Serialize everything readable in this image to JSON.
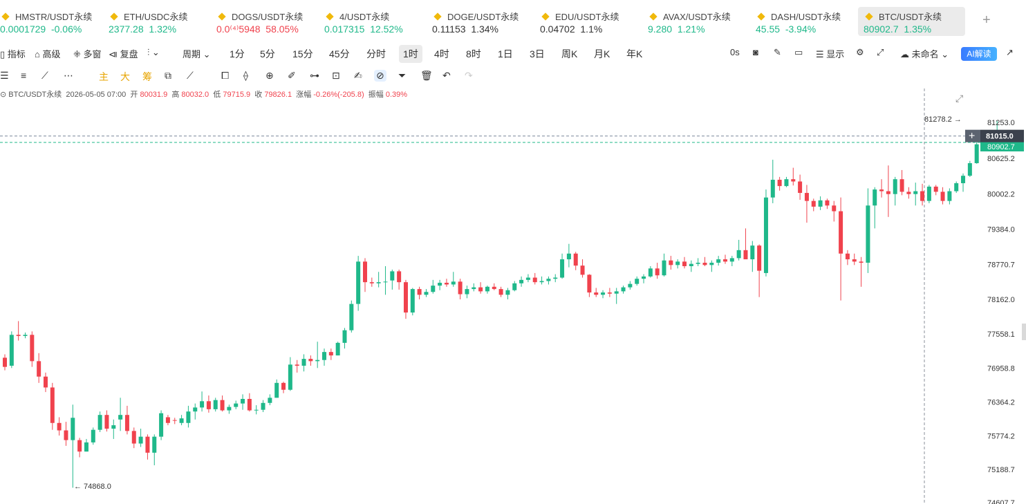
{
  "tickers": [
    {
      "name": "HMSTR/USDT永续",
      "price": "0.0001729",
      "change": "-0.06%",
      "dir": "up"
    },
    {
      "name": "ETH/USDC永续",
      "price": "2377.28",
      "change": "1.32%",
      "dir": "up"
    },
    {
      "name": "DOGS/USDT永续",
      "price": "0.0⁽⁴⁾5948",
      "change": "58.05%",
      "dir": "dn"
    },
    {
      "name": "4/USDT永续",
      "price": "0.017315",
      "change": "12.52%",
      "dir": "up"
    },
    {
      "name": "DOGE/USDT永续",
      "price": "0.11153",
      "change": "1.34%",
      "dir": "nt"
    },
    {
      "name": "EDU/USDT永续",
      "price": "0.04702",
      "change": "1.1%",
      "dir": "nt"
    },
    {
      "name": "AVAX/USDT永续",
      "price": "9.280",
      "change": "1.21%",
      "dir": "up"
    },
    {
      "name": "DASH/USDT永续",
      "price": "45.55",
      "change": "-3.94%",
      "dir": "up"
    },
    {
      "name": "BTC/USDT永续",
      "price": "80902.7",
      "change": "1.35%",
      "dir": "up"
    }
  ],
  "toolbar": {
    "indicators": "指标",
    "advanced": "高级",
    "multi": "多窗",
    "replay": "复盘",
    "period": "周期",
    "periods": [
      "1分",
      "5分",
      "15分",
      "45分",
      "分时",
      "1时",
      "4时",
      "8时",
      "1日",
      "3日",
      "周K",
      "月K",
      "年K"
    ],
    "selected_period": "1时",
    "countdown": "0s",
    "display": "显示",
    "layout_name": "未命名",
    "ai": "AI解读"
  },
  "drawbar": {
    "main": "主",
    "big": "大",
    "chip": "筹"
  },
  "info": {
    "symbol": "BTC/USDT永续",
    "time": "2026-05-05 07:00",
    "open_label": "开",
    "open": "80031.9",
    "high_label": "高",
    "high": "80032.0",
    "low_label": "低",
    "low": "79715.9",
    "close_label": "收",
    "close": "79826.1",
    "chg_label": "涨幅",
    "chg": "-0.26%(-205.8)",
    "amp_label": "振幅",
    "amp": "0.39%"
  },
  "price_axis": {
    "ticks": [
      "81253.0",
      "80625.2",
      "80002.2",
      "79384.0",
      "78770.7",
      "78162.0",
      "77558.1",
      "76958.8",
      "76364.2",
      "75774.2",
      "75188.7",
      "74607.7"
    ],
    "current": "81015.0",
    "last_price": "80902.7"
  },
  "markers": {
    "high": "81278.2",
    "low": "74868.0"
  },
  "colors": {
    "up": "#1fb88a",
    "down": "#f0424d"
  },
  "chart_data": {
    "type": "candlestick",
    "interval": "1h",
    "candles": [
      [
        77140,
        77200,
        76920,
        76980
      ],
      [
        77000,
        77600,
        76960,
        77540
      ],
      [
        77540,
        77780,
        77440,
        77520
      ],
      [
        77520,
        77580,
        77480,
        77540
      ],
      [
        77540,
        77600,
        76980,
        77080
      ],
      [
        77080,
        77220,
        76700,
        76810
      ],
      [
        76810,
        76880,
        76540,
        76620
      ],
      [
        76620,
        76700,
        75880,
        76000
      ],
      [
        76000,
        76100,
        75780,
        75870
      ],
      [
        75870,
        76020,
        75600,
        75700
      ],
      [
        75700,
        76320,
        74868,
        76090
      ],
      [
        75700,
        75740,
        75400,
        75500
      ],
      [
        75500,
        75720,
        75500,
        75660
      ],
      [
        75660,
        75920,
        75620,
        75880
      ],
      [
        75880,
        76200,
        75840,
        76140
      ],
      [
        76140,
        76220,
        75850,
        75900
      ],
      [
        75900,
        76060,
        75720,
        75960
      ],
      [
        76060,
        76440,
        75860,
        76140
      ],
      [
        76140,
        76300,
        75800,
        75860
      ],
      [
        75860,
        75920,
        75560,
        75640
      ],
      [
        75640,
        75900,
        75580,
        75760
      ],
      [
        75760,
        75800,
        75360,
        75480
      ],
      [
        75480,
        75800,
        75260,
        75760
      ],
      [
        75760,
        76220,
        75700,
        76170
      ],
      [
        76100,
        76140,
        75960,
        76000
      ],
      [
        76050,
        76090,
        75980,
        76040
      ],
      [
        76000,
        76140,
        75960,
        76080
      ],
      [
        76000,
        76300,
        75920,
        76200
      ],
      [
        76200,
        76340,
        76060,
        76270
      ],
      [
        76270,
        76550,
        76200,
        76380
      ],
      [
        76380,
        76480,
        76180,
        76240
      ],
      [
        76240,
        76440,
        76200,
        76400
      ],
      [
        76400,
        76480,
        76200,
        76220
      ],
      [
        76220,
        76320,
        76160,
        76280
      ],
      [
        76280,
        76390,
        76240,
        76340
      ],
      [
        76340,
        76500,
        76230,
        76420
      ],
      [
        76420,
        76520,
        76200,
        76220
      ],
      [
        76220,
        76310,
        76150,
        76230
      ],
      [
        76230,
        76400,
        76190,
        76350
      ],
      [
        76350,
        76500,
        76310,
        76440
      ],
      [
        76440,
        76760,
        76440,
        76700
      ],
      [
        76700,
        76720,
        76520,
        76580
      ],
      [
        76580,
        77150,
        76560,
        77020
      ],
      [
        77020,
        77100,
        76880,
        77000
      ],
      [
        77000,
        77200,
        76900,
        77120
      ],
      [
        77120,
        77180,
        77000,
        77080
      ],
      [
        77080,
        77420,
        76960,
        77100
      ],
      [
        77100,
        77300,
        77000,
        77240
      ],
      [
        77240,
        77300,
        77100,
        77180
      ],
      [
        77180,
        77420,
        77180,
        77400
      ],
      [
        77400,
        77660,
        77300,
        77620
      ],
      [
        77620,
        78140,
        77580,
        78080
      ],
      [
        78080,
        78920,
        77960,
        78820
      ],
      [
        78820,
        78880,
        78290,
        78460
      ],
      [
        78460,
        78540,
        78380,
        78440
      ],
      [
        78440,
        78640,
        78370,
        78460
      ],
      [
        78460,
        78740,
        78240,
        78470
      ],
      [
        78490,
        78680,
        78330,
        78650
      ],
      [
        78650,
        78680,
        78330,
        78460
      ],
      [
        78460,
        78500,
        77820,
        77930
      ],
      [
        77930,
        78360,
        77880,
        78340
      ],
      [
        78340,
        78380,
        78160,
        78240
      ],
      [
        78240,
        78340,
        78200,
        78290
      ],
      [
        78290,
        78500,
        78260,
        78400
      ],
      [
        78400,
        78500,
        78320,
        78450
      ],
      [
        78450,
        78520,
        78380,
        78420
      ],
      [
        78420,
        78640,
        78380,
        78470
      ],
      [
        78470,
        78520,
        78160,
        78250
      ],
      [
        78250,
        78400,
        78180,
        78340
      ],
      [
        78340,
        78440,
        78300,
        78370
      ],
      [
        78370,
        78460,
        78260,
        78300
      ],
      [
        78300,
        78400,
        78260,
        78380
      ],
      [
        78380,
        78440,
        78320,
        78340
      ],
      [
        78340,
        78380,
        78200,
        78240
      ],
      [
        78240,
        78360,
        78160,
        78320
      ],
      [
        78320,
        78480,
        78300,
        78440
      ],
      [
        78440,
        78560,
        78380,
        78500
      ],
      [
        78500,
        78600,
        78460,
        78540
      ],
      [
        78540,
        78620,
        78420,
        78460
      ],
      [
        78460,
        78560,
        78420,
        78480
      ],
      [
        78480,
        78560,
        78420,
        78520
      ],
      [
        78520,
        78600,
        78460,
        78540
      ],
      [
        78540,
        78960,
        78520,
        78860
      ],
      [
        78860,
        79130,
        78720,
        78960
      ],
      [
        78960,
        78990,
        78670,
        78750
      ],
      [
        78750,
        78860,
        78540,
        78590
      ],
      [
        78590,
        78600,
        78200,
        78280
      ],
      [
        78280,
        78360,
        78200,
        78240
      ],
      [
        78240,
        78320,
        78180,
        78280
      ],
      [
        78280,
        78360,
        78200,
        78260
      ],
      [
        78260,
        78360,
        78080,
        78300
      ],
      [
        78300,
        78400,
        78260,
        78370
      ],
      [
        78370,
        78480,
        78330,
        78430
      ],
      [
        78430,
        78560,
        78400,
        78520
      ],
      [
        78520,
        78600,
        78440,
        78560
      ],
      [
        78560,
        78740,
        78540,
        78700
      ],
      [
        78700,
        78800,
        78520,
        78580
      ],
      [
        78580,
        78960,
        78560,
        78840
      ],
      [
        78840,
        78920,
        78680,
        78760
      ],
      [
        78760,
        78860,
        78700,
        78820
      ],
      [
        78820,
        78900,
        78700,
        78740
      ],
      [
        78740,
        78840,
        78640,
        78780
      ],
      [
        78780,
        78880,
        78740,
        78800
      ],
      [
        78800,
        78900,
        78740,
        78760
      ],
      [
        78760,
        78840,
        78640,
        78800
      ],
      [
        78800,
        78920,
        78750,
        78860
      ],
      [
        78860,
        78940,
        78780,
        78820
      ],
      [
        78820,
        78920,
        78740,
        78880
      ],
      [
        78880,
        79200,
        78840,
        79020
      ],
      [
        79020,
        79400,
        78900,
        78860
      ],
      [
        78860,
        79180,
        78640,
        79100
      ],
      [
        79100,
        79120,
        78200,
        78660
      ],
      [
        78620,
        80080,
        78560,
        79940
      ],
      [
        79940,
        80600,
        79840,
        80250
      ],
      [
        80250,
        80300,
        80060,
        80140
      ],
      [
        80140,
        80300,
        80120,
        80260
      ],
      [
        80260,
        80460,
        80150,
        80220
      ],
      [
        80220,
        80340,
        79900,
        80020
      ],
      [
        80020,
        80160,
        79500,
        79880
      ],
      [
        79880,
        79920,
        79700,
        79780
      ],
      [
        79780,
        79960,
        79720,
        79890
      ],
      [
        79890,
        79920,
        79740,
        79800
      ],
      [
        79800,
        79880,
        79520,
        79700
      ],
      [
        79700,
        79940,
        78140,
        78960
      ],
      [
        78960,
        79020,
        78760,
        78860
      ],
      [
        78860,
        78960,
        78760,
        78820
      ],
      [
        78820,
        78900,
        78380,
        78800
      ],
      [
        78800,
        80100,
        78620,
        79800
      ],
      [
        79800,
        80120,
        79400,
        80080
      ],
      [
        80080,
        80260,
        79940,
        80050
      ],
      [
        80050,
        80500,
        79600,
        80000
      ],
      [
        80000,
        80300,
        79800,
        80260
      ],
      [
        80260,
        80420,
        79980,
        80040
      ],
      [
        80040,
        80120,
        79920,
        80000
      ],
      [
        80000,
        80200,
        79800,
        80050
      ],
      [
        80050,
        80180,
        79800,
        79880
      ],
      [
        79880,
        80160,
        79840,
        80130
      ],
      [
        80130,
        80160,
        79980,
        80040
      ],
      [
        80040,
        80120,
        79820,
        79880
      ],
      [
        79880,
        80100,
        79820,
        80050
      ],
      [
        80050,
        80220,
        80020,
        80190
      ],
      [
        80190,
        80360,
        80040,
        80320
      ],
      [
        80320,
        80580,
        80300,
        80540
      ],
      [
        80540,
        80960,
        80530,
        80870
      ],
      [
        80870,
        81000,
        80760,
        80900
      ],
      [
        80900,
        81030,
        80840,
        80960
      ],
      [
        80960,
        81278,
        80880,
        81015
      ]
    ]
  }
}
